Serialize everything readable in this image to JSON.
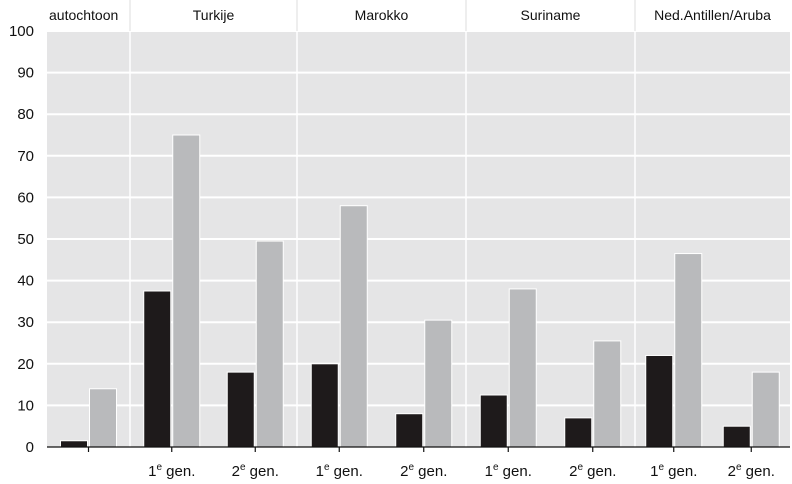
{
  "chart_data": {
    "type": "bar",
    "groups": [
      {
        "label": "autochtoon",
        "categories": [
          ""
        ]
      },
      {
        "label": "Turkije",
        "categories": [
          "1e gen.",
          "2e gen."
        ]
      },
      {
        "label": "Marokko",
        "categories": [
          "1e gen.",
          "2e gen."
        ]
      },
      {
        "label": "Suriname",
        "categories": [
          "1e gen.",
          "2e gen."
        ]
      },
      {
        "label": "Ned.Antillen/Aruba",
        "categories": [
          "1e gen.",
          "2e gen."
        ]
      }
    ],
    "series": [
      {
        "color": "#1e1a1b",
        "values": [
          1.5,
          37.5,
          18,
          20,
          8,
          12.5,
          7,
          22,
          5
        ]
      },
      {
        "color": "#b9babc",
        "values": [
          14,
          75,
          49.5,
          58,
          30.5,
          38,
          25.5,
          46.5,
          18
        ]
      }
    ],
    "ylim": [
      0,
      100
    ],
    "yticks": [
      0,
      10,
      20,
      30,
      40,
      50,
      60,
      70,
      80,
      90,
      100
    ],
    "grid": true,
    "legend": "none",
    "colors": {
      "background": "#e5e5e6",
      "gridline": "#ffffff",
      "separator": "#ffffff"
    }
  }
}
